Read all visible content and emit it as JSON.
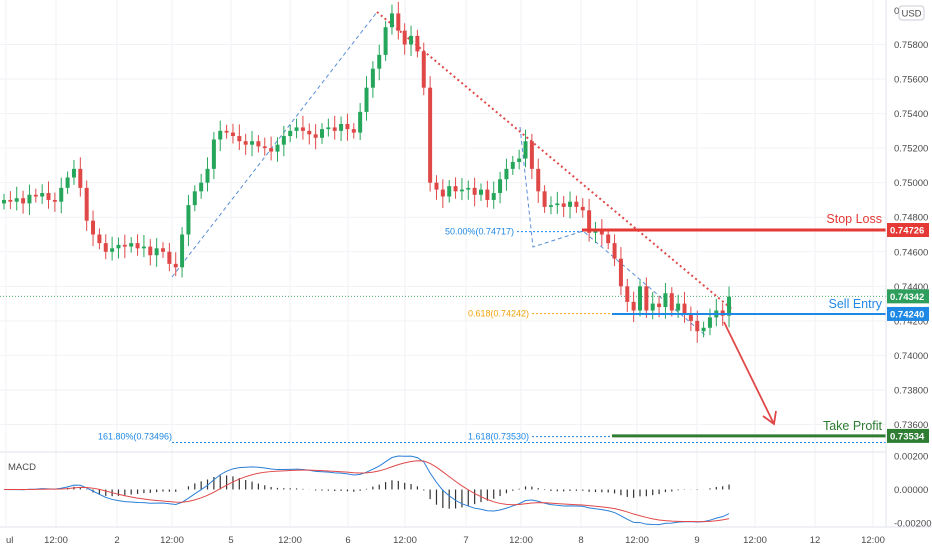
{
  "chart_data": {
    "type": "candlestick",
    "currency_badge": "USD",
    "top_tick_label": "0.",
    "y_ticks": [
      {
        "value": 0.758,
        "label": "0.75800"
      },
      {
        "value": 0.756,
        "label": "0.75600"
      },
      {
        "value": 0.754,
        "label": "0.75400"
      },
      {
        "value": 0.752,
        "label": "0.75200"
      },
      {
        "value": 0.75,
        "label": "0.75000"
      },
      {
        "value": 0.748,
        "label": "0.74800"
      },
      {
        "value": 0.746,
        "label": "0.74600"
      },
      {
        "value": 0.744,
        "label": "0.74400"
      },
      {
        "value": 0.742,
        "label": "0.74200"
      },
      {
        "value": 0.74,
        "label": "0.74000"
      },
      {
        "value": 0.738,
        "label": "0.73800"
      },
      {
        "value": 0.736,
        "label": "0.73600"
      }
    ],
    "x_ticks": [
      "ul",
      "12:00",
      "2",
      "12:00",
      "5",
      "12:00",
      "6",
      "12:00",
      "7",
      "12:00",
      "8",
      "12:00",
      "9",
      "12:00",
      "12",
      "12:00"
    ],
    "levels": [
      {
        "name": "Stop Loss",
        "value": 0.74726,
        "tag": "0.74726",
        "color": "#e53935"
      },
      {
        "name": "Sell Entry",
        "value": 0.7424,
        "tag": "0.74240",
        "color": "#1e88e5"
      },
      {
        "name": "Take Profit",
        "value": 0.73534,
        "tag": "0.73534",
        "color": "#2e7d32"
      }
    ],
    "current_price": {
      "value": 0.74342,
      "tag": "0.74342",
      "color": "#2e9e5c"
    },
    "fib_labels": [
      {
        "text": "50.00%(0.74717)",
        "value": 0.74717,
        "color": "#1e88e5"
      },
      {
        "text": "0.618(0.74242)",
        "value": 0.74242,
        "color": "#f0a30a"
      },
      {
        "text": "161.80%(0.73496)",
        "value": 0.73496,
        "color": "#1e88e5"
      },
      {
        "text": "1.618(0.73530)",
        "value": 0.7353,
        "color": "#1e88e5"
      }
    ],
    "macd": {
      "title": "MACD",
      "y_ticks": [
        {
          "value": 0.002,
          "label": "0.00200"
        },
        {
          "value": 0.0,
          "label": "0.00000"
        },
        {
          "value": -0.002,
          "label": "-0.00200"
        }
      ]
    },
    "price_series": [
      0.749,
      0.7489,
      0.7491,
      0.7488,
      0.7493,
      0.7492,
      0.7494,
      0.749,
      0.7489,
      0.7497,
      0.7503,
      0.7508,
      0.7497,
      0.7478,
      0.747,
      0.7465,
      0.746,
      0.7462,
      0.7464,
      0.7463,
      0.7465,
      0.7462,
      0.7463,
      0.7458,
      0.7462,
      0.746,
      0.7453,
      0.7451,
      0.747,
      0.7487,
      0.7495,
      0.75,
      0.7508,
      0.7525,
      0.753,
      0.7529,
      0.7527,
      0.7524,
      0.7522,
      0.7524,
      0.7521,
      0.752,
      0.7518,
      0.7522,
      0.7527,
      0.753,
      0.7532,
      0.753,
      0.7528,
      0.7526,
      0.7531,
      0.7532,
      0.753,
      0.7534,
      0.7531,
      0.7529,
      0.7541,
      0.7555,
      0.7566,
      0.7574,
      0.759,
      0.7598,
      0.7588,
      0.758,
      0.7585,
      0.7576,
      0.7555,
      0.75,
      0.7496,
      0.7492,
      0.7498,
      0.7495,
      0.7496,
      0.7497,
      0.7493,
      0.7496,
      0.749,
      0.7494,
      0.7502,
      0.7508,
      0.7512,
      0.7514,
      0.7524,
      0.7508,
      0.7495,
      0.7486,
      0.7487,
      0.7488,
      0.7486,
      0.7489,
      0.7486,
      0.7484,
      0.7471,
      0.7473,
      0.747,
      0.7465,
      0.7456,
      0.744,
      0.7431,
      0.7426,
      0.744,
      0.7426,
      0.743,
      0.7428,
      0.7436,
      0.7426,
      0.743,
      0.7424,
      0.742,
      0.7414,
      0.7416,
      0.7422,
      0.7426,
      0.7423,
      0.7434
    ]
  }
}
